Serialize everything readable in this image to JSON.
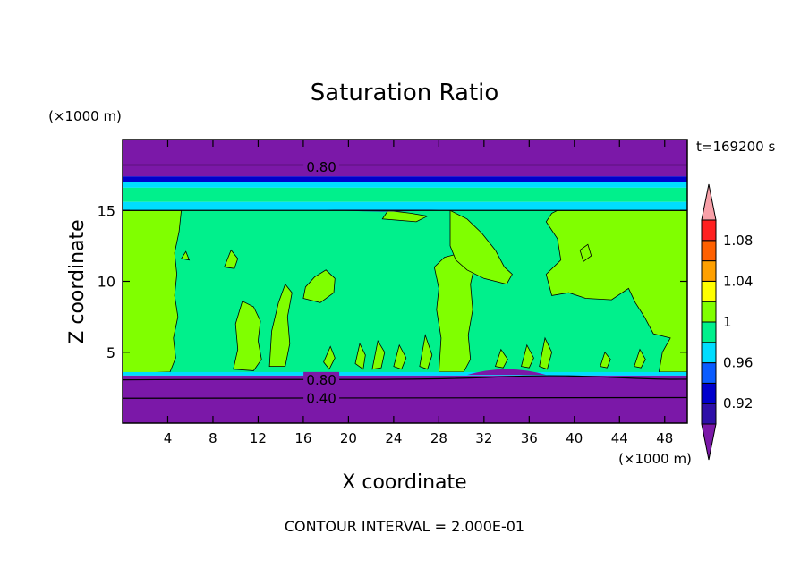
{
  "chart_data": {
    "type": "heatmap",
    "title": "Saturation Ratio",
    "xlabel": "X coordinate",
    "ylabel": "Z coordinate",
    "x_unit_label": "(×1000 m)",
    "z_unit_label": "(×1000 m)",
    "time_label": "t=169200 s",
    "footer": "CONTOUR INTERVAL = 2.000E-01",
    "xlim": [
      0,
      50
    ],
    "ylim": [
      0,
      20
    ],
    "x_ticks": [
      4,
      8,
      12,
      16,
      20,
      24,
      28,
      32,
      36,
      40,
      44,
      48
    ],
    "y_ticks": [
      5,
      10,
      15
    ],
    "contour_labels": [
      {
        "text": "0.80",
        "x": 17.6,
        "z": 18.1
      },
      {
        "text": "0.80",
        "x": 17.6,
        "z": 3.1
      },
      {
        "text": "0.40",
        "x": 17.6,
        "z": 1.8
      }
    ],
    "colorbar": {
      "levels": [
        0.88,
        0.9,
        0.92,
        0.94,
        0.96,
        0.98,
        1.0,
        1.02,
        1.04,
        1.06,
        1.08,
        1.1
      ],
      "labels": [
        "0.92",
        "0.96",
        "1",
        "1.04",
        "1.08"
      ],
      "colors": [
        "#7B18A8",
        "#2E0FA8",
        "#0000CC",
        "#0A5CFF",
        "#00DDFF",
        "#00F08C",
        "#80FF00",
        "#FFFF00",
        "#FFA000",
        "#FF6000",
        "#FF2020",
        "#F8A0A8"
      ]
    },
    "regions": {
      "upper_dry": 0.88,
      "tropopause_layers": [
        0.92,
        0.96,
        0.98,
        0.96
      ],
      "mid_environment": 0.98,
      "lower_dry": 0.88,
      "saturated_cells": 1.0
    }
  }
}
